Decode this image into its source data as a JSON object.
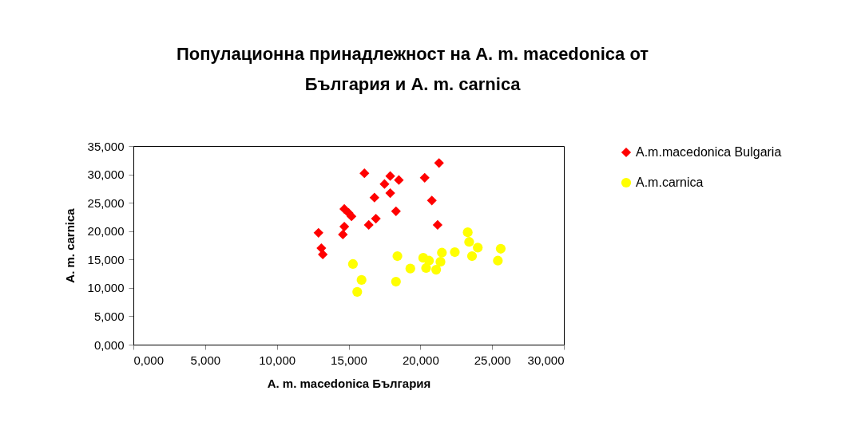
{
  "chart_data": {
    "type": "scatter",
    "title": "Популационна принадлежност на A. m. macedonica от България и A. m. carnica",
    "xlabel": "A. m. macedonica България",
    "ylabel": "A. m. carnica",
    "legend": "right",
    "grid": false,
    "xlim": [
      0,
      30
    ],
    "ylim": [
      0,
      35
    ],
    "xticks": [
      {
        "value": 0,
        "label": "0,000"
      },
      {
        "value": 5,
        "label": "5,000"
      },
      {
        "value": 10,
        "label": "10,000"
      },
      {
        "value": 15,
        "label": "15,000"
      },
      {
        "value": 20,
        "label": "20,000"
      },
      {
        "value": 25,
        "label": "25,000"
      },
      {
        "value": 30,
        "label": "30,000"
      }
    ],
    "yticks": [
      {
        "value": 0,
        "label": "0,000"
      },
      {
        "value": 5,
        "label": "5,000"
      },
      {
        "value": 10,
        "label": "10,000"
      },
      {
        "value": 15,
        "label": "15,000"
      },
      {
        "value": 20,
        "label": "20,000"
      },
      {
        "value": 25,
        "label": "25,000"
      },
      {
        "value": 30,
        "label": "30,000"
      },
      {
        "value": 35,
        "label": "35,000"
      }
    ],
    "series": [
      {
        "name": "A.m.macedonica Bulgaria",
        "color": "#ff0000",
        "marker": "diamond",
        "x": [
          12.9,
          13.1,
          13.2,
          14.7,
          15.0,
          15.2,
          14.7,
          14.6,
          16.1,
          16.8,
          16.4,
          16.9,
          17.5,
          17.9,
          18.5,
          17.9,
          18.3,
          20.3,
          21.3,
          20.8,
          21.2
        ],
        "values": [
          19.7,
          17.0,
          15.9,
          23.9,
          23.2,
          22.6,
          20.8,
          19.4,
          30.2,
          25.9,
          21.1,
          22.2,
          28.3,
          29.7,
          29.0,
          26.7,
          23.5,
          29.4,
          32.0,
          25.4,
          21.1
        ]
      },
      {
        "name": "A.m.carnica",
        "color": "#ffff00",
        "marker": "circle",
        "x": [
          15.3,
          15.9,
          15.6,
          18.4,
          18.3,
          19.3,
          20.2,
          20.6,
          20.4,
          21.1,
          21.4,
          21.5,
          22.4,
          23.3,
          23.4,
          24.0,
          23.6,
          25.6,
          25.4
        ],
        "values": [
          14.2,
          11.4,
          9.3,
          15.6,
          11.1,
          13.4,
          15.3,
          14.8,
          13.5,
          13.2,
          14.6,
          16.2,
          16.3,
          19.8,
          18.1,
          17.1,
          15.6,
          16.9,
          14.8
        ]
      }
    ]
  }
}
